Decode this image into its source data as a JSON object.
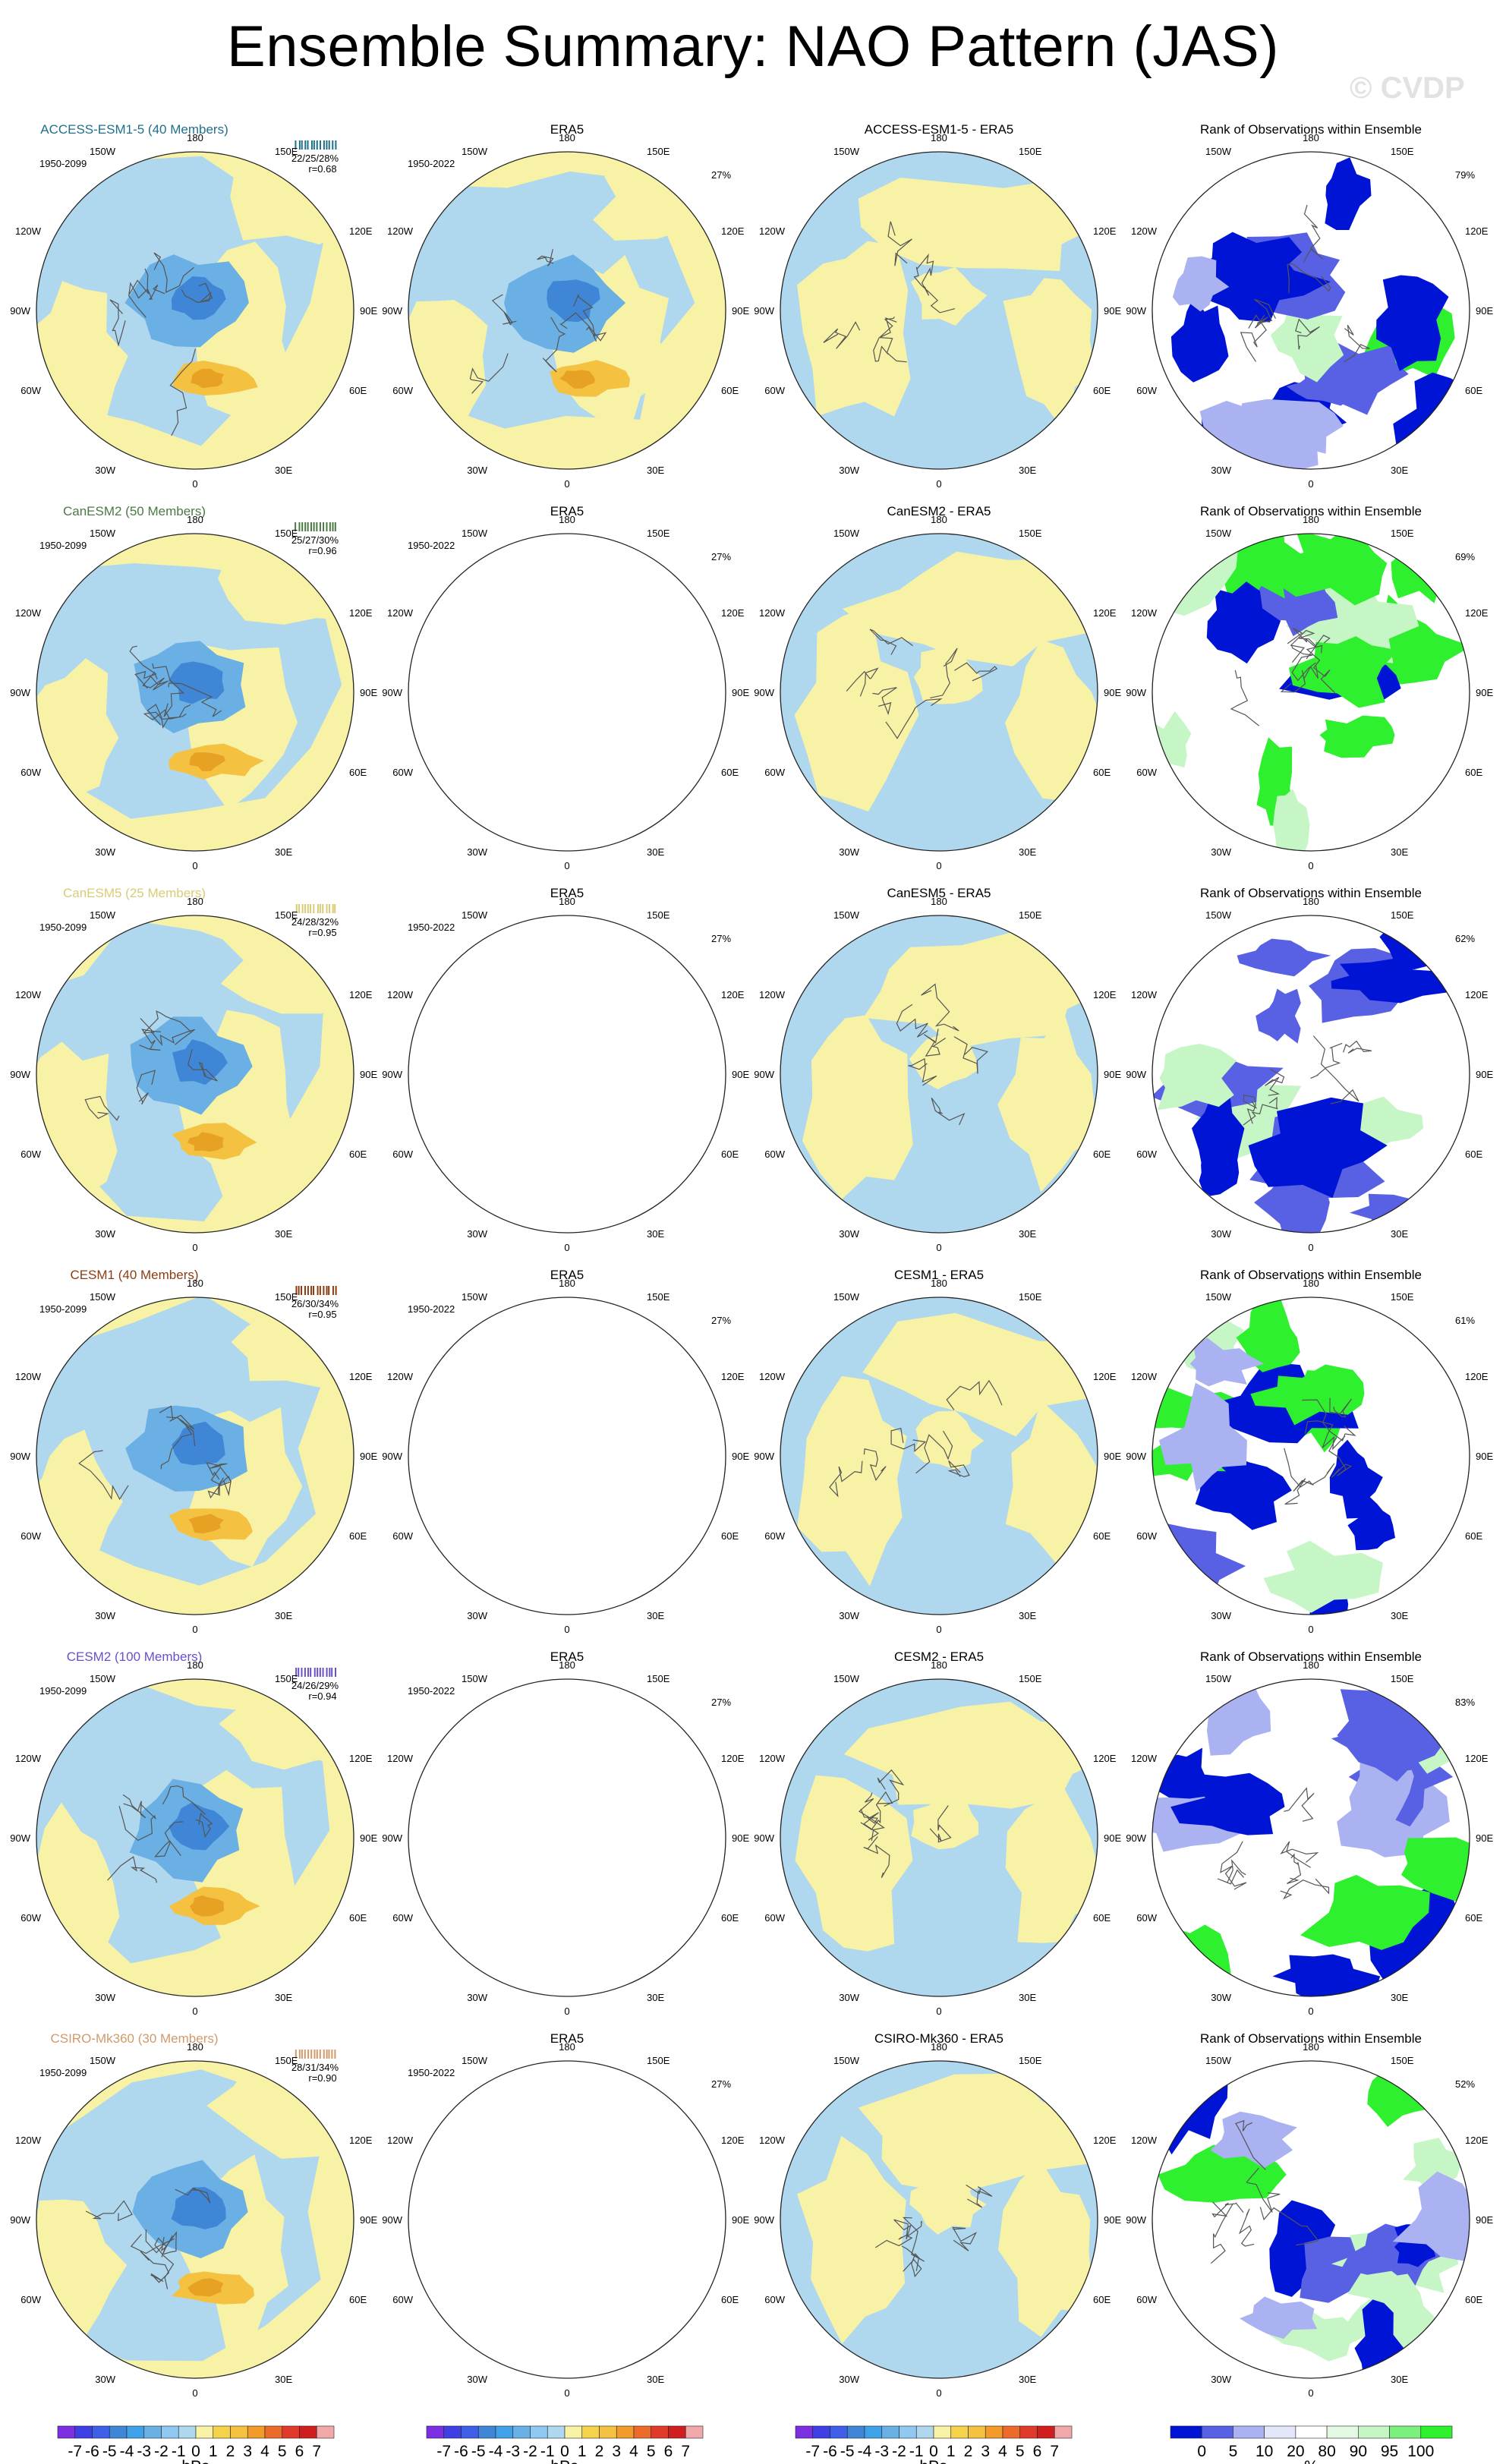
{
  "page": {
    "title": "Ensemble Summary: NAO Pattern (JAS)",
    "watermark": "© CVDP"
  },
  "colors": {
    "ocean_yellow": "#f7f2a6",
    "light_blue": "#afd7ee",
    "mid_blue": "#6ab0e4",
    "deep_blue": "#3f86d6",
    "orange": "#f4c141",
    "dark_orange": "#e7a123",
    "rank_blue": "#0014d6",
    "rank_light_blue": "#aab2f2",
    "rank_green": "#2ef02e",
    "rank_light_green": "#c6f5c6"
  },
  "rows": [
    {
      "model": "ACCESS-ESM1-5 (40 Members)",
      "model_color": "#1f6f8b",
      "period": "1950-2099",
      "stats": "22/25/28%",
      "r": "r=0.68",
      "obs_period": "1950-2022",
      "obs_pct": "27%",
      "diff_title": "ACCESS-ESM1-5 - ERA5",
      "rank_pct": "79%"
    },
    {
      "model": "CanESM2 (50 Members)",
      "model_color": "#4c7a43",
      "period": "1950-2099",
      "stats": "25/27/30%",
      "r": "r=0.96",
      "obs_period": "1950-2022",
      "obs_pct": "27%",
      "diff_title": "CanESM2 - ERA5",
      "rank_pct": "69%"
    },
    {
      "model": "CanESM5 (25 Members)",
      "model_color": "#d8cc76",
      "period": "1950-2099",
      "stats": "24/28/32%",
      "r": "r=0.95",
      "obs_period": "1950-2022",
      "obs_pct": "27%",
      "diff_title": "CanESM5 - ERA5",
      "rank_pct": "62%"
    },
    {
      "model": "CESM1 (40 Members)",
      "model_color": "#8a3d12",
      "period": "1950-2099",
      "stats": "26/30/34%",
      "r": "r=0.95",
      "obs_period": "1950-2022",
      "obs_pct": "27%",
      "diff_title": "CESM1 - ERA5",
      "rank_pct": "61%"
    },
    {
      "model": "CESM2 (100 Members)",
      "model_color": "#6c4fc8",
      "period": "1950-2099",
      "stats": "24/26/29%",
      "r": "r=0.94",
      "obs_period": "1950-2022",
      "obs_pct": "27%",
      "diff_title": "CESM2 - ERA5",
      "rank_pct": "83%"
    },
    {
      "model": "CSIRO-Mk360 (30 Members)",
      "model_color": "#d09a6a",
      "period": "1950-2099",
      "stats": "28/31/34%",
      "r": "r=0.90",
      "obs_period": "1950-2022",
      "obs_pct": "27%",
      "diff_title": "CSIRO-Mk360 - ERA5",
      "rank_pct": "52%"
    }
  ],
  "obs_title": "ERA5",
  "rank_title": "Rank of Observations within Ensemble",
  "lon_labels": {
    "top": "180",
    "tl": "150W",
    "tr": "150E",
    "ul": "120W",
    "ur": "120E",
    "l": "90W",
    "r": "90E",
    "ll": "60W",
    "lr": "60E",
    "bl": "30W",
    "br": "30E",
    "bottom": "0"
  },
  "colorbar_hpa": {
    "ticks": [
      "-7",
      "-6",
      "-5",
      "-4",
      "-3",
      "-2",
      "-1",
      "0",
      "1",
      "2",
      "3",
      "4",
      "5",
      "6",
      "7"
    ],
    "unit": "hPa",
    "colors": [
      "#7b2fe0",
      "#3f3fe6",
      "#3f5fe8",
      "#3f86d6",
      "#3fa2e8",
      "#6ab0e4",
      "#8fc8f0",
      "#afd7ee",
      "#f7f2a6",
      "#f4d24a",
      "#f4c141",
      "#f29a2a",
      "#ec6a2a",
      "#e03a2a",
      "#d01e1e",
      "#f1a8a8"
    ]
  },
  "colorbar_rank": {
    "ticks": [
      "0",
      "5",
      "10",
      "20",
      "80",
      "90",
      "95",
      "100"
    ],
    "unit": "%",
    "colors": [
      "#0014d6",
      "#5860e4",
      "#aab2f2",
      "#e4e7fa",
      "#ffffff",
      "#e4f9e4",
      "#c6f5c6",
      "#7cf07c",
      "#2ef02e"
    ]
  }
}
